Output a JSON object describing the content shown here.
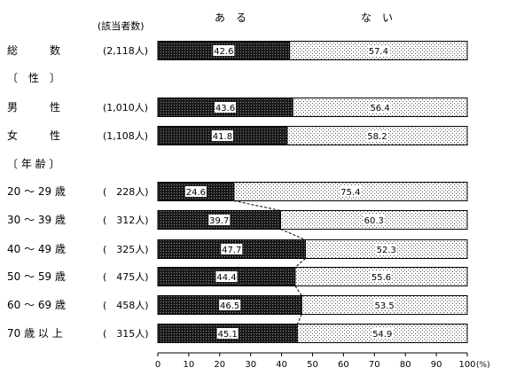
{
  "chart_data": {
    "type": "bar",
    "orientation": "horizontal",
    "stacked": true,
    "count_header": "(該当者数)",
    "legend": [
      "あ　る",
      "な　い"
    ],
    "series": [
      {
        "name": "ある",
        "color": "#1a1a1a",
        "pattern": "dense-dots"
      },
      {
        "name": "ない",
        "color": "#ffffff",
        "pattern": "sparse-dots"
      }
    ],
    "groups": [
      {
        "header": "",
        "rows": [
          {
            "label": "総　　　数",
            "count": "(2,118人)",
            "values": [
              42.6,
              57.4
            ],
            "labels": [
              "42.6",
              "57.4"
            ]
          }
        ]
      },
      {
        "header": "〔　性　〕",
        "rows": [
          {
            "label": "男　　　性",
            "count": "(1,010人)",
            "values": [
              43.6,
              56.4
            ],
            "labels": [
              "43.6",
              "56.4"
            ]
          },
          {
            "label": "女　　　性",
            "count": "(1,108人)",
            "values": [
              41.8,
              58.2
            ],
            "labels": [
              "41.8",
              "58.2"
            ]
          }
        ]
      },
      {
        "header": "〔 年 齢 〕",
        "rows": [
          {
            "label": "20 ～ 29 歳",
            "count": "(　228人)",
            "values": [
              24.6,
              75.4
            ],
            "labels": [
              "24.6",
              "75.4"
            ]
          },
          {
            "label": "30 ～ 39 歳",
            "count": "(　312人)",
            "values": [
              39.7,
              60.3
            ],
            "labels": [
              "39.7",
              "60.3"
            ]
          },
          {
            "label": "40 ～ 49 歳",
            "count": "(　325人)",
            "values": [
              47.7,
              52.3
            ],
            "labels": [
              "47.7",
              "52.3"
            ]
          },
          {
            "label": "50 ～ 59 歳",
            "count": "(　475人)",
            "values": [
              44.4,
              55.6
            ],
            "labels": [
              "44.4",
              "55.6"
            ]
          },
          {
            "label": "60 ～ 69 歳",
            "count": "(　458人)",
            "values": [
              46.5,
              53.5
            ],
            "labels": [
              "46.5",
              "53.5"
            ]
          },
          {
            "label": "70 歳 以 上",
            "count": "(　315人)",
            "values": [
              45.1,
              54.9
            ],
            "labels": [
              "45.1",
              "54.9"
            ]
          }
        ]
      }
    ],
    "connectors": [
      [
        4,
        5
      ],
      [
        5,
        6
      ],
      [
        6,
        7
      ],
      [
        7,
        8
      ],
      [
        8,
        9
      ]
    ],
    "xlim": [
      0,
      100
    ],
    "xticks": [
      0,
      10,
      20,
      30,
      40,
      50,
      60,
      70,
      80,
      90,
      100
    ],
    "x_unit": "(%)",
    "grid": false
  }
}
